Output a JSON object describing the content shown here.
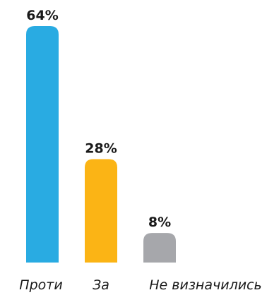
{
  "chart_data": {
    "type": "bar",
    "categories": [
      "Проти",
      "За",
      "Не визначились"
    ],
    "values": [
      64,
      28,
      8
    ],
    "value_labels": [
      "64%",
      "28%",
      "8%"
    ],
    "unit": "%",
    "title": "",
    "xlabel": "",
    "ylabel": "",
    "ylim": [
      0,
      64
    ],
    "grid": false,
    "legend": "none",
    "colors": [
      "#29abe2",
      "#fbb415",
      "#a6a7ab"
    ]
  }
}
